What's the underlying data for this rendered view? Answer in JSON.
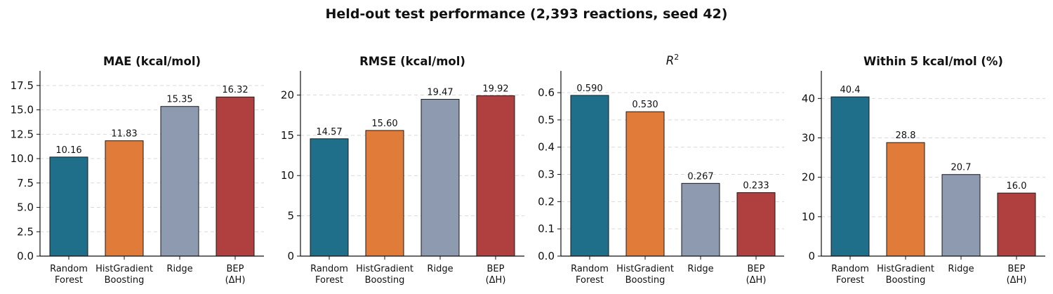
{
  "figure_title": "Held-out test performance (2,393 reactions, seed 42)",
  "categories": [
    [
      "Random",
      "Forest"
    ],
    [
      "HistGradient",
      "Boosting"
    ],
    [
      "Ridge"
    ],
    [
      "BEP",
      "(ΔH)"
    ]
  ],
  "bar_colors": [
    "#1f6e8a",
    "#e07b3a",
    "#8d9ab0",
    "#b03f3f"
  ],
  "chart_data": [
    {
      "type": "bar",
      "title": "MAE (kcal/mol)",
      "title_style": "bold",
      "categories": [
        "Random Forest",
        "HistGradient Boosting",
        "Ridge",
        "BEP (ΔH)"
      ],
      "values": [
        10.16,
        11.83,
        15.35,
        16.32
      ],
      "value_labels": [
        "10.16",
        "11.83",
        "15.35",
        "16.32"
      ],
      "ylim": [
        0,
        19
      ],
      "yticks": [
        0,
        2.5,
        5,
        7.5,
        10,
        12.5,
        15,
        17.5
      ],
      "ytick_labels": [
        "0.0",
        "2.5",
        "5.0",
        "7.5",
        "10.0",
        "12.5",
        "15.0",
        "17.5"
      ],
      "grid": "y-dashed"
    },
    {
      "type": "bar",
      "title": "RMSE (kcal/mol)",
      "title_style": "bold",
      "categories": [
        "Random Forest",
        "HistGradient Boosting",
        "Ridge",
        "BEP (ΔH)"
      ],
      "values": [
        14.57,
        15.6,
        19.47,
        19.92
      ],
      "value_labels": [
        "14.57",
        "15.60",
        "19.47",
        "19.92"
      ],
      "ylim": [
        0,
        23
      ],
      "yticks": [
        0,
        5,
        10,
        15,
        20
      ],
      "ytick_labels": [
        "0",
        "5",
        "10",
        "15",
        "20"
      ],
      "grid": "y-dashed"
    },
    {
      "type": "bar",
      "title": "R",
      "title_sup": "2",
      "title_style": "italic",
      "categories": [
        "Random Forest",
        "HistGradient Boosting",
        "Ridge",
        "BEP (ΔH)"
      ],
      "values": [
        0.59,
        0.53,
        0.267,
        0.233
      ],
      "value_labels": [
        "0.590",
        "0.530",
        "0.267",
        "0.233"
      ],
      "ylim": [
        0,
        0.68
      ],
      "yticks": [
        0,
        0.1,
        0.2,
        0.3,
        0.4,
        0.5,
        0.6
      ],
      "ytick_labels": [
        "0.0",
        "0.1",
        "0.2",
        "0.3",
        "0.4",
        "0.5",
        "0.6"
      ],
      "grid": "y-dashed"
    },
    {
      "type": "bar",
      "title": "Within 5 kcal/mol (%)",
      "title_style": "bold",
      "categories": [
        "Random Forest",
        "HistGradient Boosting",
        "Ridge",
        "BEP (ΔH)"
      ],
      "values": [
        40.4,
        28.8,
        20.7,
        16.0
      ],
      "value_labels": [
        "40.4",
        "28.8",
        "20.7",
        "16.0"
      ],
      "ylim": [
        0,
        47
      ],
      "yticks": [
        0,
        10,
        20,
        30,
        40
      ],
      "ytick_labels": [
        "0",
        "10",
        "20",
        "30",
        "40"
      ],
      "grid": "y-dashed"
    }
  ]
}
